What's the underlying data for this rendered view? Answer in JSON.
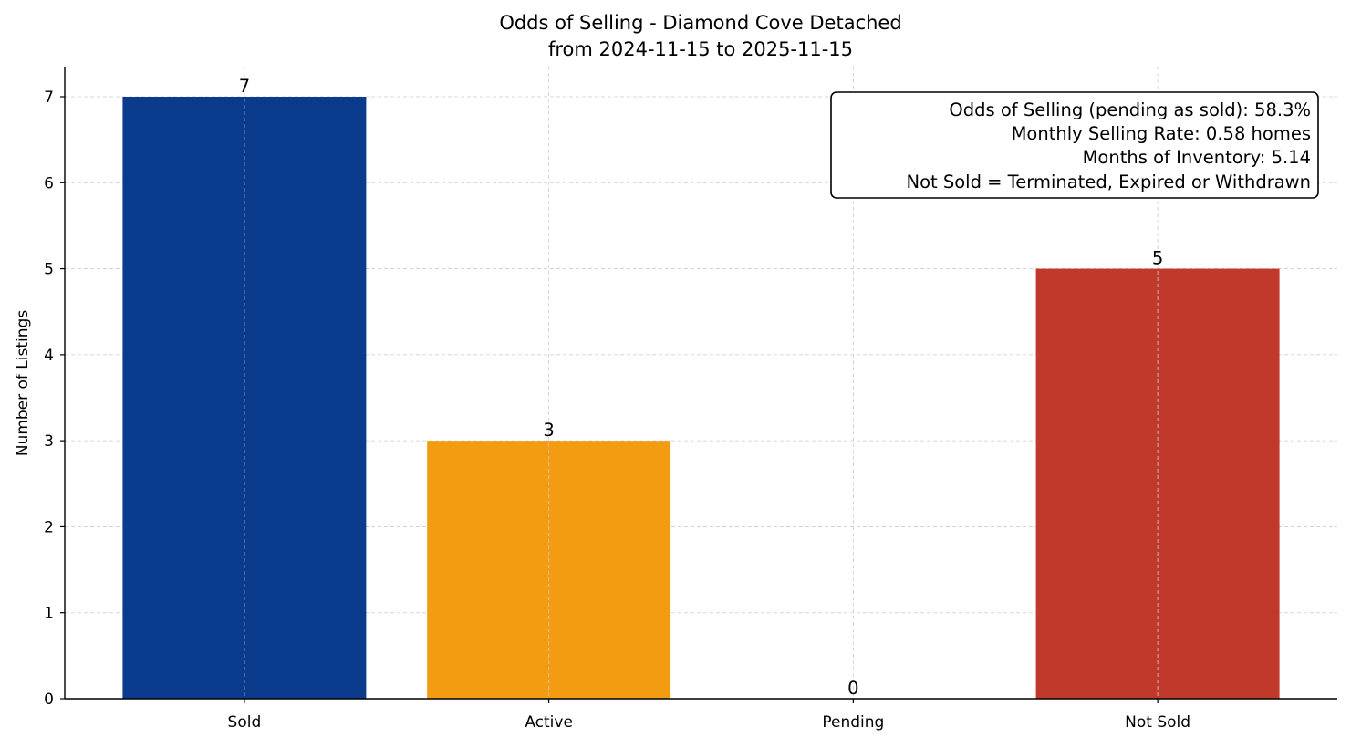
{
  "chart_data": {
    "type": "bar",
    "title": "Odds of Selling - Diamond Cove Detached",
    "subtitle": "from 2024-11-15 to 2025-11-15",
    "xlabel": "",
    "ylabel": "Number of Listings",
    "categories": [
      "Sold",
      "Active",
      "Pending",
      "Not Sold"
    ],
    "values": [
      7,
      3,
      0,
      5
    ],
    "colors": [
      "#0b3b8c",
      "#f39c12",
      "#8e44ad",
      "#c0392b"
    ],
    "ylim": [
      0,
      7.35
    ],
    "yticks": [
      0,
      1,
      2,
      3,
      4,
      5,
      6,
      7
    ],
    "grid": true,
    "annotation_box": {
      "placement": "top-right",
      "lines": [
        "Odds of Selling (pending as sold): 58.3%",
        "Monthly Selling Rate: 0.58 homes",
        "Months of Inventory: 5.14",
        "Not Sold = Terminated, Expired or Withdrawn"
      ]
    }
  }
}
